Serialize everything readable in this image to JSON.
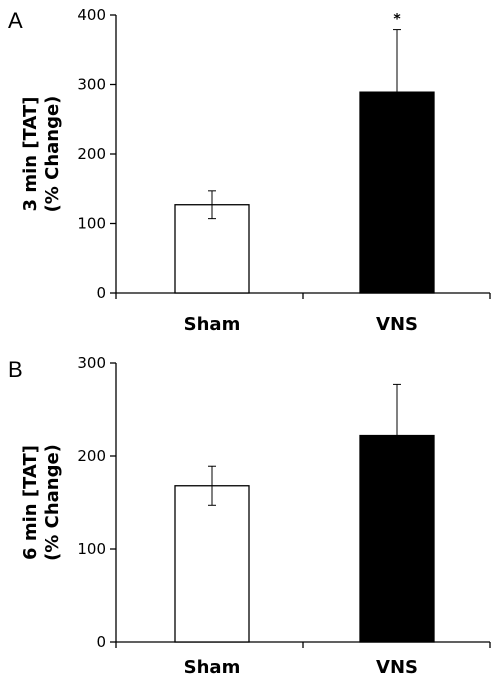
{
  "chart_data": [
    {
      "type": "bar",
      "panel": "A",
      "categories": [
        "Sham",
        "VNS"
      ],
      "values": [
        127,
        289
      ],
      "error": [
        20,
        90
      ],
      "bar_colors": [
        "#ffffff",
        "#000000"
      ],
      "significance": [
        "",
        "*"
      ],
      "ylabel_line1": "3 min [TAT]",
      "ylabel_line2": "(% Change)",
      "ylim": [
        0,
        400
      ],
      "yticks": [
        0,
        100,
        200,
        300,
        400
      ]
    },
    {
      "type": "bar",
      "panel": "B",
      "categories": [
        "Sham",
        "VNS"
      ],
      "values": [
        168,
        222
      ],
      "error": [
        21,
        55
      ],
      "bar_colors": [
        "#ffffff",
        "#000000"
      ],
      "significance": [
        "",
        ""
      ],
      "ylabel_line1": "6 min [TAT]",
      "ylabel_line2": "(% Change)",
      "ylim": [
        0,
        300
      ],
      "yticks": [
        0,
        100,
        200,
        300
      ]
    }
  ]
}
